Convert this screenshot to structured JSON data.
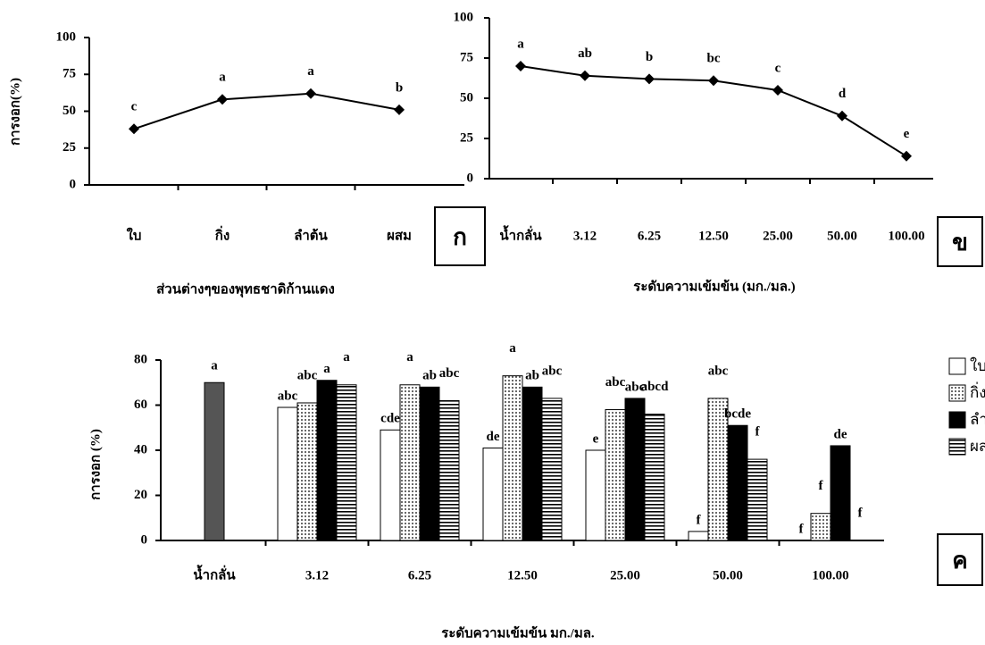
{
  "chart_data": [
    {
      "type": "line",
      "panel": "ก",
      "ylabel": "การงอก(%)",
      "xlabel": "ส่วนต่างๆของพุทธชาดิก้านแดง",
      "categories": [
        "ใบ",
        "กิ่ง",
        "ลำต้น",
        "ผสม"
      ],
      "values": [
        38,
        58,
        62,
        51
      ],
      "letters": [
        "c",
        "a",
        "a",
        "b"
      ],
      "color": "#000000",
      "ylim": [
        0,
        100
      ],
      "yticks": [
        0,
        25,
        50,
        75,
        100
      ]
    },
    {
      "type": "line",
      "panel": "ข",
      "xlabel": "ระดับความเข้มข้น (มก./มล.)",
      "categories": [
        "น้ำกลั่น",
        "3.12",
        "6.25",
        "12.50",
        "25.00",
        "50.00",
        "100.00"
      ],
      "values": [
        70,
        64,
        62,
        61,
        55,
        39,
        14
      ],
      "letters": [
        "a",
        "ab",
        "b",
        "bc",
        "c",
        "d",
        "e"
      ],
      "color": "#000000",
      "ylim": [
        0,
        100
      ],
      "yticks": [
        0,
        25,
        50,
        75,
        100
      ]
    },
    {
      "type": "bar",
      "panel": "ค",
      "ylabel": "การงอก (%)",
      "xlabel": "ระดับความเข้มข้น มก./มล.",
      "categories": [
        "น้ำกลั่น",
        "3.12",
        "6.25",
        "12.50",
        "25.00",
        "50.00",
        "100.00"
      ],
      "control": {
        "value": 70,
        "letter": "a",
        "color": "#555555"
      },
      "series": [
        {
          "name": "ใบ",
          "color": "#ffffff",
          "pattern": "none",
          "values": [
            null,
            59,
            49,
            41,
            40,
            4,
            0
          ],
          "letters": [
            null,
            "abc",
            "cde",
            "de",
            "e",
            "f",
            "f"
          ]
        },
        {
          "name": "กิ่ง",
          "color": "#ffffff",
          "pattern": "dots",
          "values": [
            null,
            61,
            69,
            73,
            58,
            63,
            12
          ],
          "letters": [
            null,
            "abc",
            "a",
            "a",
            "abc",
            "abc",
            "f"
          ]
        },
        {
          "name": "ลำต้น",
          "color": "#000000",
          "pattern": "none",
          "values": [
            null,
            71,
            68,
            68,
            63,
            51,
            42
          ],
          "letters": [
            null,
            "a",
            "ab",
            "ab",
            "abc",
            "bcde",
            "de"
          ]
        },
        {
          "name": "ผสม",
          "color": "#ffffff",
          "pattern": "stripes",
          "values": [
            null,
            69,
            62,
            63,
            56,
            36,
            0
          ],
          "letters": [
            null,
            "a",
            "abc",
            "abc",
            "abcd",
            "f",
            "f"
          ]
        }
      ],
      "ylim": [
        0,
        80
      ],
      "yticks": [
        0,
        20,
        40,
        60,
        80
      ]
    }
  ]
}
